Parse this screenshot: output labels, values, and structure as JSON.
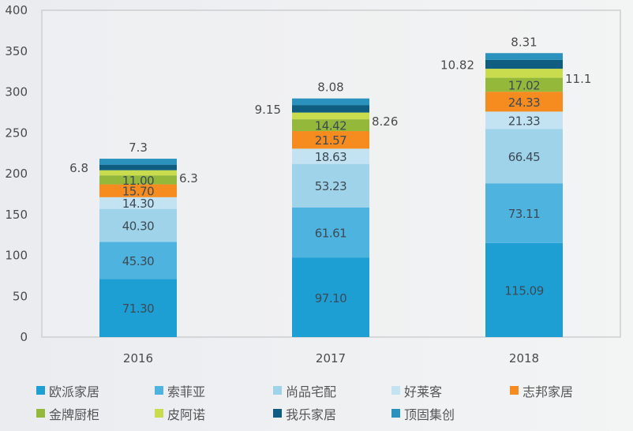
{
  "chart_data": {
    "type": "bar",
    "stacked": true,
    "title": "",
    "xlabel": "",
    "ylabel": "",
    "categories": [
      "2016",
      "2017",
      "2018"
    ],
    "ylim": [
      0,
      400
    ],
    "yticks": [
      0,
      50,
      100,
      150,
      200,
      250,
      300,
      350,
      400
    ],
    "grid": false,
    "legend_position": "bottom",
    "series": [
      {
        "name": "欧派家居",
        "color": "#1e9fd4",
        "values": [
          71.3,
          97.1,
          115.09
        ],
        "labels": [
          "71.30",
          "97.10",
          "115.09"
        ],
        "label_pos": "inside"
      },
      {
        "name": "索菲亚",
        "color": "#4fb3e0",
        "values": [
          45.3,
          61.61,
          73.11
        ],
        "labels": [
          "45.30",
          "61.61",
          "73.11"
        ],
        "label_pos": "inside"
      },
      {
        "name": "尚品宅配",
        "color": "#9ed3ea",
        "values": [
          40.3,
          53.23,
          66.45
        ],
        "labels": [
          "40.30",
          "53.23",
          "66.45"
        ],
        "label_pos": "inside"
      },
      {
        "name": "好莱客",
        "color": "#c3e3f2",
        "values": [
          14.3,
          18.63,
          21.33
        ],
        "labels": [
          "14.30",
          "18.63",
          "21.33"
        ],
        "label_pos": "inside"
      },
      {
        "name": "志邦家居",
        "color": "#f68b1f",
        "values": [
          15.7,
          21.57,
          24.33
        ],
        "labels": [
          "15.70",
          "21.57",
          "24.33"
        ],
        "label_pos": "inside"
      },
      {
        "name": "金牌厨柜",
        "color": "#93b83a",
        "values": [
          11.0,
          14.42,
          17.02
        ],
        "labels": [
          "11.00",
          "14.42",
          "17.02"
        ],
        "label_pos": "inside"
      },
      {
        "name": "皮阿诺",
        "color": "#c9dc4e",
        "values": [
          6.3,
          8.26,
          11.1
        ],
        "labels": [
          "6.3",
          "8.26",
          "11.1"
        ],
        "label_pos": "right"
      },
      {
        "name": "我乐家居",
        "color": "#0f5e82",
        "values": [
          6.8,
          9.15,
          10.82
        ],
        "labels": [
          "6.8",
          "9.15",
          "10.82"
        ],
        "label_pos": "left"
      },
      {
        "name": "顶固集创",
        "color": "#2a92bd",
        "values": [
          7.3,
          8.08,
          8.31
        ],
        "labels": [
          "7.3",
          "8.08",
          "8.31"
        ],
        "label_pos": "top"
      }
    ]
  }
}
